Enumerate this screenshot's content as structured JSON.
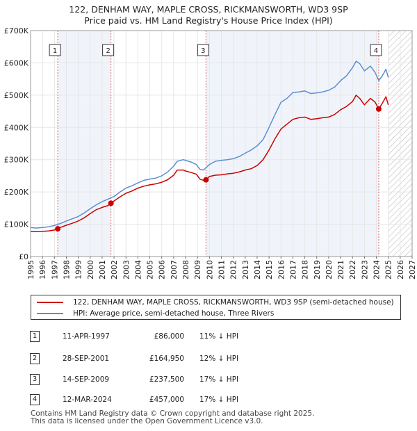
{
  "title_line1": "122, DENHAM WAY, MAPLE CROSS, RICKMANSWORTH, WD3 9SP",
  "title_line2": "Price paid vs. HM Land Registry's House Price Index (HPI)",
  "colors": {
    "property": "#cc0000",
    "hpi": "#5b8fd0",
    "marker_line": "#e06666",
    "shade": "#dde6f5"
  },
  "chart_data": {
    "type": "line",
    "y_tick_labels": [
      "£0",
      "£100K",
      "£200K",
      "£300K",
      "£400K",
      "£500K",
      "£600K",
      "£700K"
    ],
    "y_tick_values": [
      0,
      100000,
      200000,
      300000,
      400000,
      500000,
      600000,
      700000
    ],
    "x_tick_labels": [
      "1995",
      "1996",
      "1997",
      "1998",
      "1999",
      "2000",
      "2001",
      "2002",
      "2003",
      "2004",
      "2005",
      "2006",
      "2007",
      "2008",
      "2009",
      "2010",
      "2011",
      "2012",
      "2013",
      "2014",
      "2015",
      "2016",
      "2017",
      "2018",
      "2019",
      "2020",
      "2021",
      "2022",
      "2023",
      "2024",
      "2025",
      "2026",
      "2027"
    ],
    "xlim": [
      1995,
      2027
    ],
    "ylim": [
      0,
      700000
    ],
    "data_end_year": 2025.0,
    "series": [
      {
        "name": "122, DENHAM WAY, MAPLE CROSS, RICKMANSWORTH, WD3 9SP (semi-detached house)",
        "x": [
          1995,
          1995.5,
          1996,
          1996.5,
          1997,
          1997.28,
          1997.5,
          1998,
          1998.5,
          1999,
          1999.5,
          2000,
          2000.5,
          2001,
          2001.5,
          2001.74,
          2002,
          2002.5,
          2003,
          2003.5,
          2004,
          2004.5,
          2005,
          2005.5,
          2006,
          2006.5,
          2007,
          2007.3,
          2007.8,
          2008,
          2008.5,
          2008.9,
          2009.2,
          2009.5,
          2009.71,
          2010,
          2010.5,
          2011,
          2011.5,
          2012,
          2012.5,
          2013,
          2013.5,
          2014,
          2014.5,
          2015,
          2015.5,
          2016,
          2016.5,
          2017,
          2017.5,
          2018,
          2018.5,
          2019,
          2019.5,
          2020,
          2020.5,
          2021,
          2021.5,
          2022,
          2022.3,
          2022.6,
          2023,
          2023.5,
          2023.9,
          2024.2,
          2024.5,
          2024.8,
          2025
        ],
        "values": [
          78000,
          77000,
          78000,
          79000,
          82000,
          86000,
          90000,
          97000,
          103000,
          110000,
          120000,
          133000,
          145000,
          152000,
          158000,
          164950,
          172000,
          185000,
          196000,
          203000,
          212000,
          218000,
          222000,
          225000,
          230000,
          238000,
          252000,
          268000,
          268000,
          265000,
          260000,
          255000,
          240000,
          236000,
          237500,
          248000,
          252000,
          253000,
          256000,
          258000,
          262000,
          268000,
          272000,
          282000,
          300000,
          330000,
          365000,
          395000,
          410000,
          425000,
          430000,
          432000,
          425000,
          427000,
          430000,
          432000,
          440000,
          455000,
          465000,
          480000,
          500000,
          490000,
          470000,
          490000,
          478000,
          457000,
          475000,
          495000,
          470000
        ]
      },
      {
        "name": "HPI: Average price, semi-detached house, Three Rivers",
        "x": [
          1995,
          1995.5,
          1996,
          1996.5,
          1997,
          1997.5,
          1998,
          1998.5,
          1999,
          1999.5,
          2000,
          2000.5,
          2001,
          2001.5,
          2002,
          2002.5,
          2003,
          2003.5,
          2004,
          2004.5,
          2005,
          2005.5,
          2006,
          2006.5,
          2007,
          2007.3,
          2007.8,
          2008,
          2008.5,
          2008.9,
          2009.2,
          2009.5,
          2010,
          2010.5,
          2011,
          2011.5,
          2012,
          2012.5,
          2013,
          2013.5,
          2014,
          2014.5,
          2015,
          2015.5,
          2016,
          2016.5,
          2017,
          2017.5,
          2018,
          2018.5,
          2019,
          2019.5,
          2020,
          2020.5,
          2021,
          2021.5,
          2022,
          2022.3,
          2022.6,
          2023,
          2023.5,
          2023.9,
          2024.2,
          2024.5,
          2024.8,
          2025
        ],
        "values": [
          90000,
          88000,
          90000,
          92000,
          96000,
          102000,
          110000,
          117000,
          124000,
          135000,
          148000,
          160000,
          170000,
          178000,
          186000,
          200000,
          212000,
          219000,
          228000,
          236000,
          240000,
          243000,
          250000,
          262000,
          280000,
          295000,
          300000,
          298000,
          292000,
          285000,
          270000,
          268000,
          285000,
          295000,
          298000,
          300000,
          303000,
          310000,
          320000,
          330000,
          343000,
          362000,
          400000,
          440000,
          478000,
          490000,
          508000,
          510000,
          513000,
          505000,
          507000,
          510000,
          515000,
          525000,
          545000,
          560000,
          585000,
          605000,
          598000,
          575000,
          590000,
          570000,
          545000,
          560000,
          580000,
          555000
        ]
      }
    ],
    "transactions": [
      {
        "label": "1",
        "x": 1997.28,
        "value": 86000
      },
      {
        "label": "2",
        "x": 2001.74,
        "value": 164950
      },
      {
        "label": "3",
        "x": 2009.71,
        "value": 237500
      },
      {
        "label": "4",
        "x": 2024.2,
        "value": 457000
      }
    ]
  },
  "legend": {
    "property_label": "122, DENHAM WAY, MAPLE CROSS, RICKMANSWORTH, WD3 9SP (semi-detached house)",
    "hpi_label": "HPI: Average price, semi-detached house, Three Rivers"
  },
  "transactions_table": [
    {
      "num": "1",
      "date": "11-APR-1997",
      "price": "£86,000",
      "hpi": "11% ↓ HPI"
    },
    {
      "num": "2",
      "date": "28-SEP-2001",
      "price": "£164,950",
      "hpi": "12% ↓ HPI"
    },
    {
      "num": "3",
      "date": "14-SEP-2009",
      "price": "£237,500",
      "hpi": "17% ↓ HPI"
    },
    {
      "num": "4",
      "date": "12-MAR-2024",
      "price": "£457,000",
      "hpi": "17% ↓ HPI"
    }
  ],
  "footer_line1": "Contains HM Land Registry data © Crown copyright and database right 2025.",
  "footer_line2": "This data is licensed under the Open Government Licence v3.0."
}
